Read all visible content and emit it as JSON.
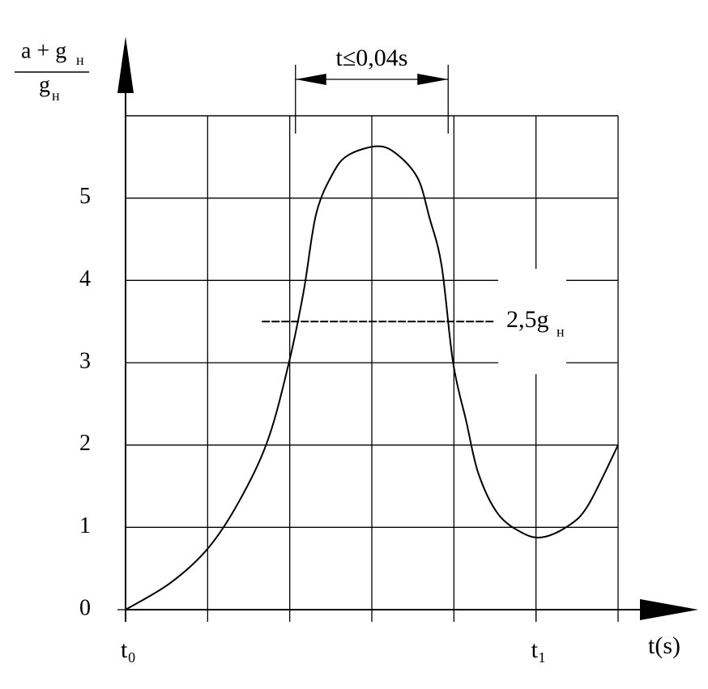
{
  "chart_data": {
    "type": "line",
    "y_label": {
      "numerator": "a + g",
      "numerator_subscript": "н",
      "denominator": "g",
      "denominator_subscript": "н"
    },
    "x_label": "t(s)",
    "x": [
      0,
      0.54,
      1.0,
      1.38,
      1.73,
      1.99,
      2.17,
      2.32,
      2.52,
      2.71,
      3.07,
      3.31,
      3.56,
      3.7,
      3.85,
      3.99,
      4.15,
      4.3,
      4.54,
      4.84,
      5.08,
      5.38,
      5.63,
      6.0
    ],
    "series": [
      {
        "color": "#000000",
        "values": [
          0,
          0.32,
          0.74,
          1.31,
          2.05,
          3.0,
          3.87,
          4.8,
          5.29,
          5.52,
          5.63,
          5.53,
          5.24,
          4.77,
          4.18,
          3.0,
          2.29,
          1.65,
          1.16,
          0.93,
          0.88,
          1.01,
          1.26,
          2.0
        ]
      }
    ],
    "xlim": [
      0,
      6
    ],
    "ylim": [
      0,
      6
    ],
    "xticks": [
      {
        "value": 0,
        "label": "t₀"
      },
      {
        "value": 5,
        "label": "t₁"
      }
    ],
    "yticks": [
      0,
      1,
      2,
      3,
      4,
      5
    ],
    "grid": true,
    "reference_line": {
      "value": 3.5,
      "x": [
        1.66,
        4.5
      ],
      "label": "2,5g",
      "label_subscript": "н"
    },
    "span": {
      "label": "t≤0,04s",
      "x": [
        2.07,
        3.93
      ]
    }
  }
}
